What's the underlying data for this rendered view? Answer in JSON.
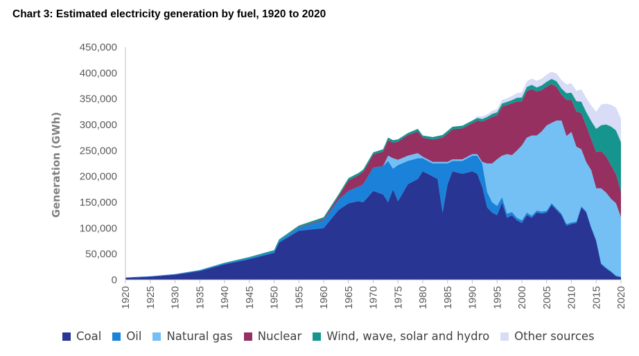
{
  "title": "Chart 3: Estimated electricity generation by fuel, 1920 to 2020",
  "chart_data": {
    "type": "area",
    "stacked": true,
    "ylabel": "Generation (GWh)",
    "xlabel": "",
    "ylim": [
      0,
      450000
    ],
    "xlim": [
      1920,
      2020
    ],
    "yticks": [
      0,
      50000,
      100000,
      150000,
      200000,
      250000,
      300000,
      350000,
      400000,
      450000
    ],
    "ytick_labels": [
      "0",
      "50,000",
      "100,000",
      "150,000",
      "200,000",
      "250,000",
      "300,000",
      "350,000",
      "400,000",
      "450,000"
    ],
    "xticks": [
      1920,
      1925,
      1930,
      1935,
      1940,
      1945,
      1950,
      1955,
      1960,
      1965,
      1970,
      1975,
      1980,
      1985,
      1990,
      1995,
      2000,
      2005,
      2010,
      2015,
      2020
    ],
    "grid": false,
    "legend_position": "bottom",
    "x": [
      1920,
      1925,
      1930,
      1935,
      1940,
      1945,
      1950,
      1951,
      1955,
      1960,
      1963,
      1965,
      1967,
      1968,
      1970,
      1972,
      1973,
      1974,
      1975,
      1977,
      1979,
      1980,
      1982,
      1983,
      1984,
      1985,
      1986,
      1988,
      1990,
      1991,
      1992,
      1993,
      1994,
      1995,
      1996,
      1997,
      1998,
      1999,
      2000,
      2001,
      2002,
      2003,
      2004,
      2005,
      2006,
      2007,
      2008,
      2009,
      2010,
      2011,
      2012,
      2013,
      2014,
      2015,
      2016,
      2017,
      2018,
      2019,
      2020
    ],
    "series": [
      {
        "name": "Coal",
        "color": "#283593",
        "values": [
          4000,
          6000,
          10000,
          17000,
          30000,
          40000,
          52000,
          72000,
          95000,
          100000,
          135000,
          148000,
          152000,
          150000,
          172000,
          165000,
          150000,
          175000,
          152000,
          185000,
          195000,
          210000,
          200000,
          195000,
          130000,
          185000,
          210000,
          205000,
          210000,
          205000,
          180000,
          140000,
          130000,
          125000,
          150000,
          120000,
          125000,
          115000,
          110000,
          125000,
          120000,
          130000,
          128000,
          130000,
          145000,
          135000,
          125000,
          105000,
          108000,
          110000,
          140000,
          130000,
          100000,
          75000,
          30000,
          22000,
          15000,
          7000,
          5000
        ]
      },
      {
        "name": "Oil",
        "color": "#1a82d9",
        "values": [
          500,
          800,
          1000,
          1500,
          2000,
          2000,
          3000,
          3500,
          6000,
          15000,
          20000,
          24000,
          28000,
          35000,
          45000,
          55000,
          80000,
          40000,
          70000,
          45000,
          40000,
          25000,
          25000,
          30000,
          95000,
          40000,
          20000,
          25000,
          30000,
          35000,
          45000,
          30000,
          20000,
          18000,
          10000,
          8000,
          6000,
          5000,
          5000,
          5000,
          4000,
          4000,
          4000,
          3500,
          3500,
          3000,
          3000,
          3000,
          3000,
          2500,
          2500,
          2500,
          2000,
          2000,
          2000,
          1500,
          1500,
          1000,
          1000
        ]
      },
      {
        "name": "Natural gas",
        "color": "#74c0f5",
        "values": [
          0,
          0,
          0,
          0,
          0,
          0,
          0,
          0,
          0,
          0,
          0,
          0,
          0,
          0,
          0,
          0,
          10000,
          20000,
          10000,
          10000,
          10000,
          3000,
          3000,
          3000,
          3000,
          3000,
          3000,
          3000,
          3000,
          3000,
          3000,
          55000,
          75000,
          90000,
          80000,
          115000,
          110000,
          130000,
          145000,
          145000,
          155000,
          145000,
          155000,
          165000,
          155000,
          170000,
          180000,
          170000,
          175000,
          145000,
          110000,
          95000,
          110000,
          100000,
          145000,
          145000,
          140000,
          140000,
          115000
        ]
      },
      {
        "name": "Nuclear",
        "color": "#953060",
        "values": [
          0,
          0,
          0,
          0,
          0,
          0,
          0,
          0,
          1000,
          2000,
          6000,
          20000,
          22000,
          24000,
          25000,
          28000,
          30000,
          30000,
          35000,
          40000,
          42000,
          37000,
          43000,
          45000,
          47000,
          55000,
          58000,
          60000,
          60000,
          65000,
          78000,
          85000,
          90000,
          85000,
          95000,
          95000,
          100000,
          95000,
          85000,
          90000,
          90000,
          85000,
          80000,
          75000,
          75000,
          65000,
          50000,
          70000,
          62000,
          68000,
          70000,
          70000,
          60000,
          70000,
          72000,
          70000,
          65000,
          56000,
          50000
        ]
      },
      {
        "name": "Wind, wave, solar and hydro",
        "color": "#16958f",
        "values": [
          0,
          0,
          0,
          500,
          1000,
          2000,
          2500,
          2500,
          3000,
          4000,
          4000,
          4500,
          4500,
          4500,
          4500,
          4500,
          5000,
          5000,
          4500,
          4000,
          5000,
          4000,
          5000,
          5000,
          5000,
          5000,
          5000,
          5000,
          5000,
          5000,
          5000,
          5000,
          6000,
          6000,
          6000,
          6000,
          6500,
          7000,
          7500,
          8000,
          8000,
          8000,
          9000,
          9500,
          10000,
          11000,
          12000,
          13000,
          14000,
          20000,
          22000,
          27000,
          35000,
          45000,
          50000,
          62000,
          75000,
          85000,
          95000
        ]
      },
      {
        "name": "Other sources",
        "color": "#d8dcf6",
        "values": [
          0,
          0,
          0,
          0,
          0,
          0,
          0,
          0,
          0,
          0,
          0,
          0,
          0,
          0,
          0,
          0,
          0,
          0,
          0,
          0,
          0,
          0,
          0,
          0,
          0,
          0,
          0,
          0,
          0,
          3000,
          5000,
          5000,
          6000,
          6000,
          7000,
          7000,
          8000,
          9000,
          10000,
          11000,
          12000,
          13000,
          13000,
          14000,
          14000,
          15000,
          16000,
          17000,
          18000,
          20000,
          24000,
          27000,
          30000,
          33000,
          40000,
          40000,
          42000,
          44000,
          45000
        ]
      }
    ]
  }
}
